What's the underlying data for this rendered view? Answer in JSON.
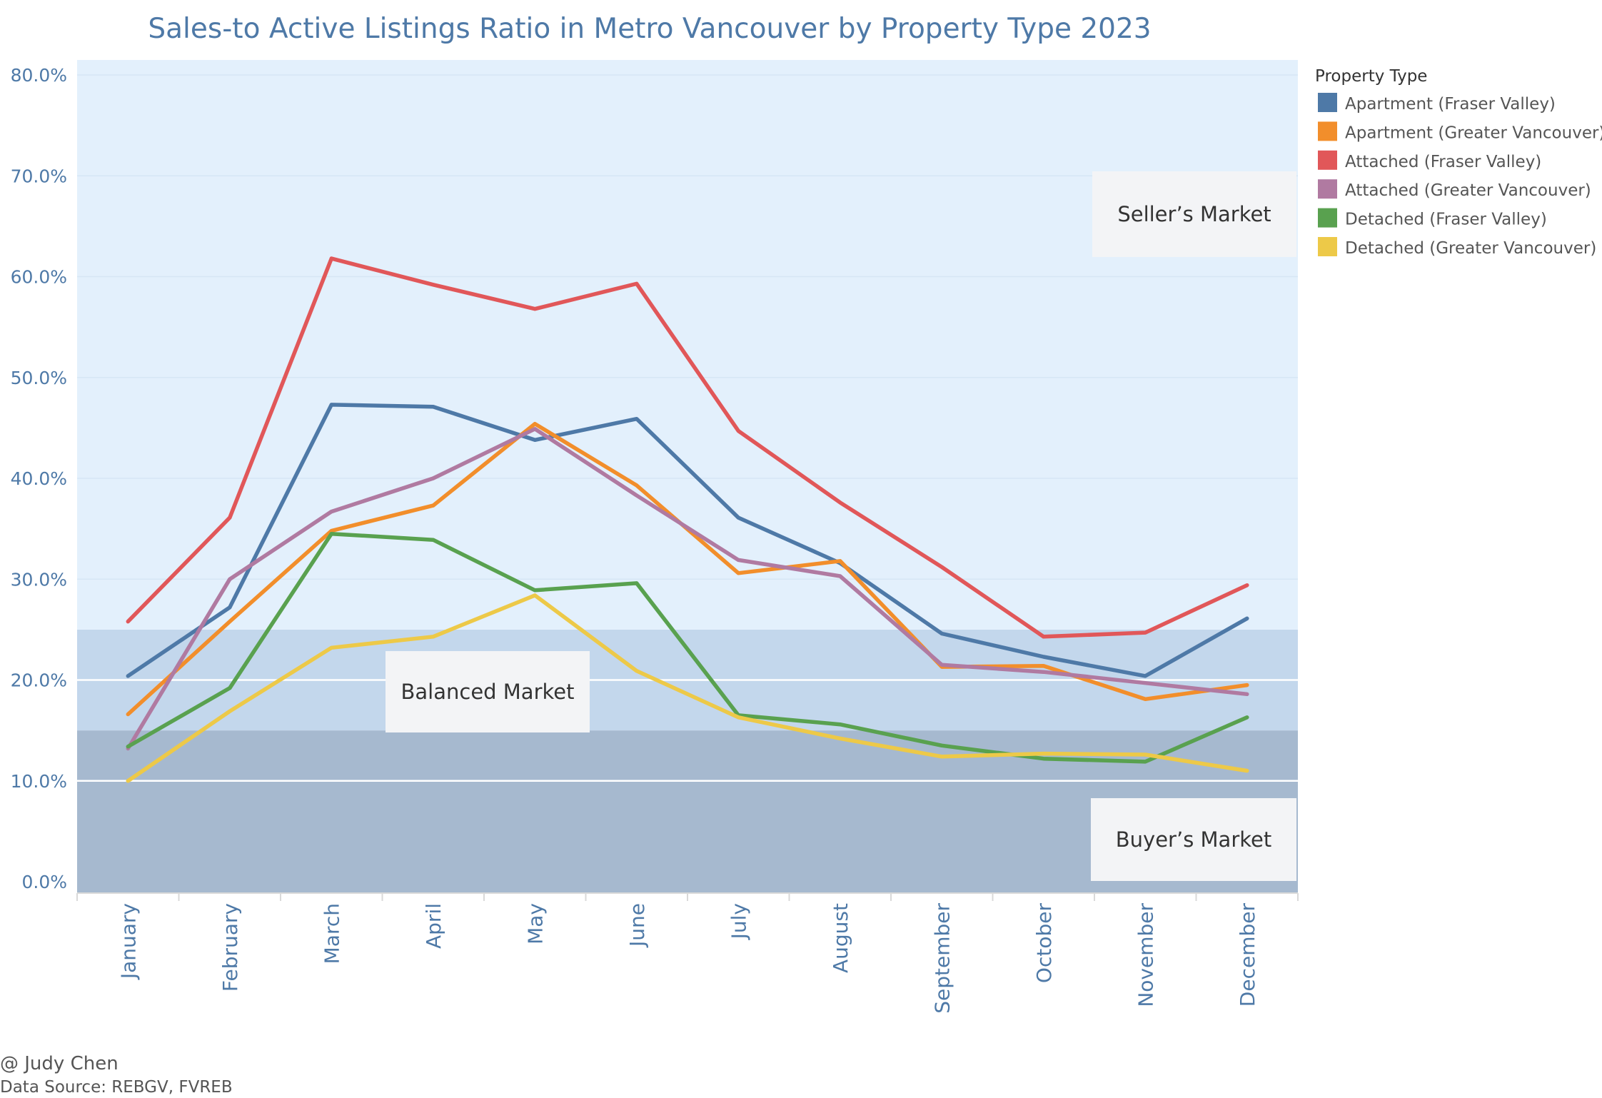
{
  "chart_data": {
    "type": "line",
    "title": "Sales-to Active Listings Ratio in Metro Vancouver by Property Type 2023",
    "categories": [
      "January",
      "February",
      "March",
      "April",
      "May",
      "June",
      "July",
      "August",
      "September",
      "October",
      "November",
      "December"
    ],
    "y_ticks": [
      "0.0%",
      "10.0%",
      "20.0%",
      "30.0%",
      "40.0%",
      "50.0%",
      "60.0%",
      "70.0%",
      "80.0%"
    ],
    "ylim": [
      0,
      0.8
    ],
    "regions": [
      {
        "name": "Buyer’s Market",
        "range": [
          0,
          0.15
        ],
        "color": "#a6b9cf"
      },
      {
        "name": "Balanced Market",
        "range": [
          0.15,
          0.25
        ],
        "color": "#c3d7ec"
      },
      {
        "name": "Seller’s Market",
        "range": [
          0.25,
          0.8
        ],
        "color": "#e3f0fc"
      }
    ],
    "legend_title": "Property Type",
    "legend_position": "right",
    "series": [
      {
        "name": "Apartment (Fraser Valley)",
        "color": "#4e79a7",
        "values": [
          0.204,
          0.272,
          0.473,
          0.471,
          0.438,
          0.459,
          0.361,
          0.316,
          0.246,
          0.223,
          0.204,
          0.261
        ]
      },
      {
        "name": "Apartment (Greater Vancouver)",
        "color": "#f28e2b",
        "values": [
          0.166,
          0.258,
          0.348,
          0.373,
          0.454,
          0.393,
          0.306,
          0.318,
          0.213,
          0.214,
          0.181,
          0.195
        ]
      },
      {
        "name": "Attached (Fraser Valley)",
        "color": "#e15759",
        "values": [
          0.258,
          0.361,
          0.618,
          0.592,
          0.568,
          0.593,
          0.447,
          0.376,
          0.312,
          0.243,
          0.247,
          0.294
        ]
      },
      {
        "name": "Attached (Greater Vancouver)",
        "color": "#b07aa1",
        "values": [
          0.132,
          0.3,
          0.367,
          0.4,
          0.449,
          0.383,
          0.319,
          0.303,
          0.215,
          0.208,
          0.197,
          0.186
        ]
      },
      {
        "name": "Detached (Fraser Valley)",
        "color": "#59a14f",
        "values": [
          0.134,
          0.192,
          0.345,
          0.339,
          0.289,
          0.296,
          0.165,
          0.156,
          0.135,
          0.122,
          0.119,
          0.163
        ]
      },
      {
        "name": "Detached (Greater Vancouver)",
        "color": "#edc948",
        "values": [
          0.1,
          0.169,
          0.232,
          0.243,
          0.284,
          0.209,
          0.163,
          0.142,
          0.124,
          0.127,
          0.126,
          0.11
        ]
      }
    ]
  },
  "footer": {
    "credit": "@ Judy Chen",
    "source": "Data Source: REBGV, FVREB"
  }
}
